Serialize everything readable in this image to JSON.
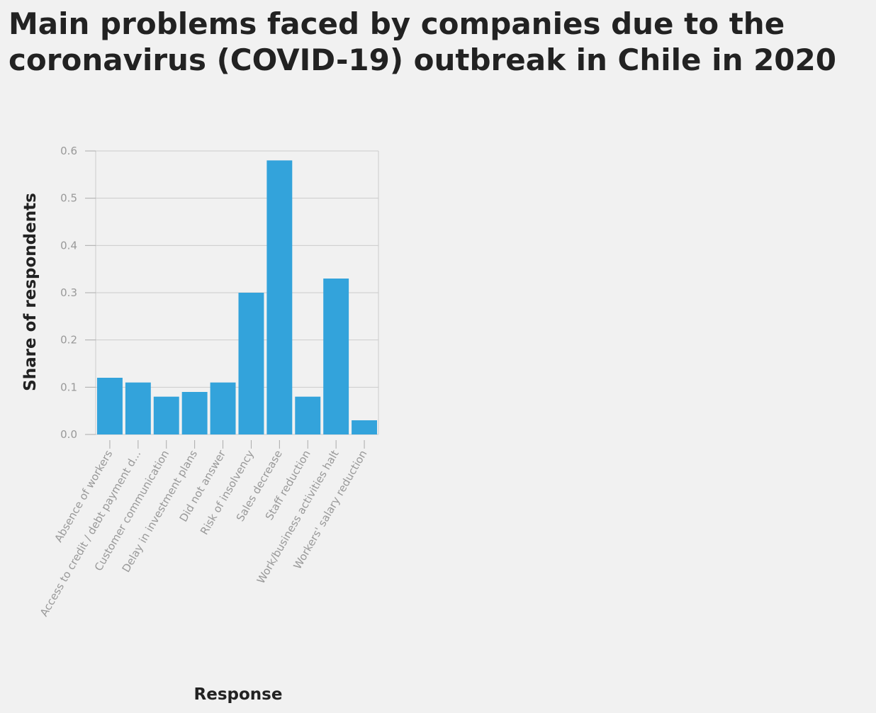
{
  "chart_data": {
    "type": "bar",
    "title": "Main problems faced by companies due to the coronavirus (COVID-19) outbreak in Chile in 2020",
    "xlabel": "Response",
    "ylabel": "Share of respondents",
    "ylim": [
      0,
      0.6
    ],
    "yticks": [
      "0.0",
      "0.1",
      "0.2",
      "0.3",
      "0.4",
      "0.5",
      "0.6"
    ],
    "grid": true,
    "bar_color": "#33a3db",
    "categories": [
      "Absence of workers",
      "Access to credit / debt payment d...",
      "Customer communication",
      "Delay in investment plans",
      "Did not answer",
      "Risk of insolvency",
      "Sales decrease",
      "Staff reduction",
      "Work/business activities halt",
      "Workers' salary reduction"
    ],
    "values": [
      0.12,
      0.11,
      0.08,
      0.09,
      0.11,
      0.3,
      0.58,
      0.08,
      0.33,
      0.03
    ]
  }
}
